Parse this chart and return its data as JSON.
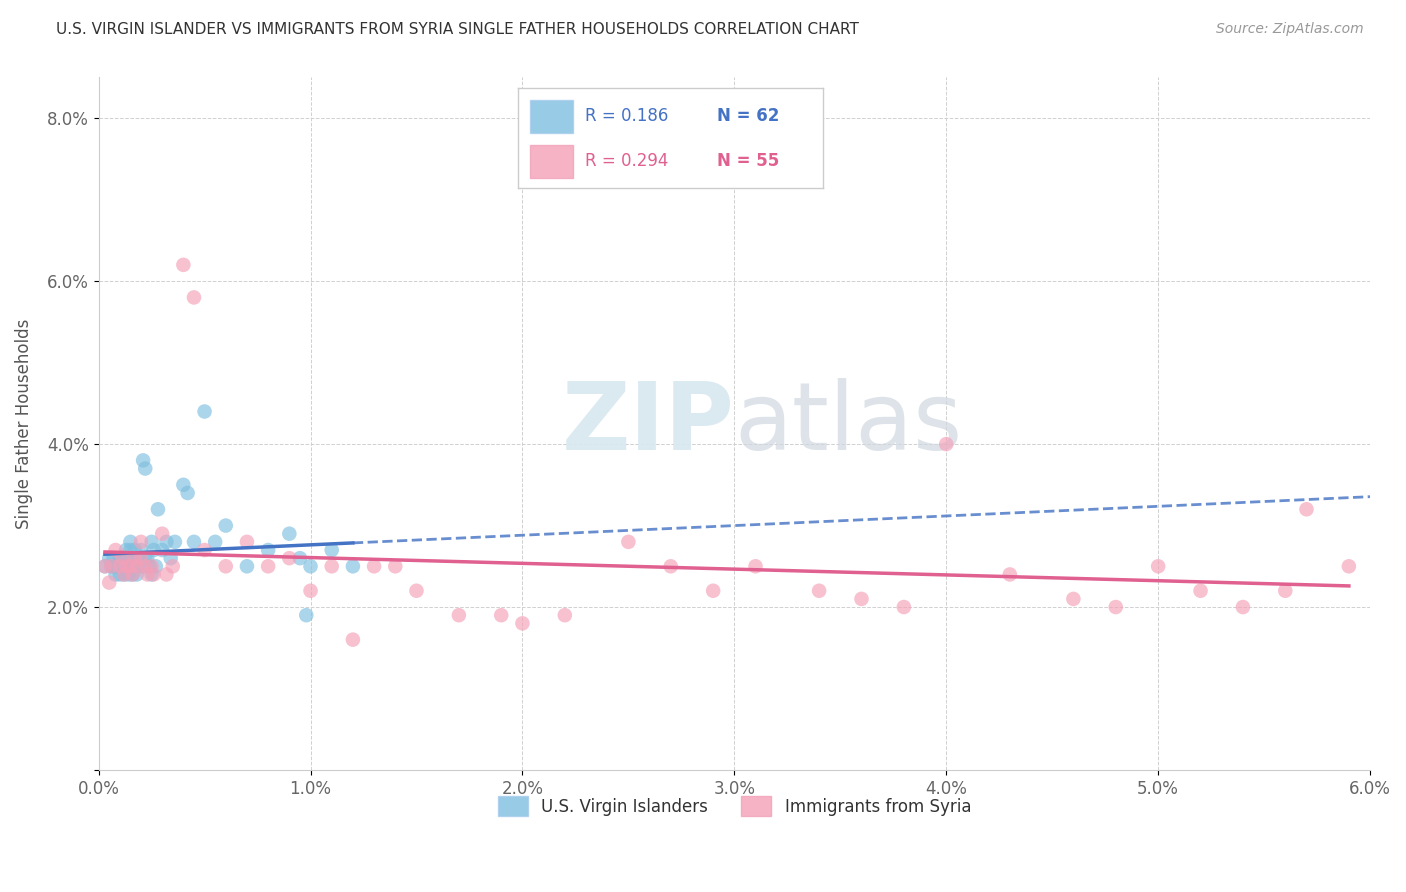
{
  "title": "U.S. VIRGIN ISLANDER VS IMMIGRANTS FROM SYRIA SINGLE FATHER HOUSEHOLDS CORRELATION CHART",
  "source": "Source: ZipAtlas.com",
  "ylabel": "Single Father Households",
  "xlabel": "",
  "xlim": [
    0.0,
    0.06
  ],
  "ylim": [
    0.0,
    0.085
  ],
  "xticks": [
    0.0,
    0.01,
    0.02,
    0.03,
    0.04,
    0.05,
    0.06
  ],
  "yticks": [
    0.0,
    0.02,
    0.04,
    0.06,
    0.08
  ],
  "xtick_labels": [
    "0.0%",
    "1.0%",
    "2.0%",
    "3.0%",
    "4.0%",
    "5.0%",
    "6.0%"
  ],
  "ytick_labels": [
    "",
    "2.0%",
    "4.0%",
    "6.0%",
    "8.0%"
  ],
  "legend_r1": "R = 0.186",
  "legend_n1": "N = 62",
  "legend_r2": "R = 0.294",
  "legend_n2": "N = 55",
  "color_blue": "#7fbfdf",
  "color_pink": "#f4a0b8",
  "color_blue_line": "#4472c4",
  "color_pink_line": "#e06090",
  "color_blue_text": "#4472c4",
  "color_pink_text": "#e06090",
  "watermark_zip": "ZIP",
  "watermark_atlas": "atlas",
  "legend_label_blue": "U.S. Virgin Islanders",
  "legend_label_pink": "Immigrants from Syria",
  "blue_x": [
    0.0003,
    0.0005,
    0.0006,
    0.0007,
    0.0007,
    0.0008,
    0.0008,
    0.0009,
    0.001,
    0.001,
    0.001,
    0.001,
    0.0011,
    0.0011,
    0.0012,
    0.0012,
    0.0013,
    0.0013,
    0.0013,
    0.0014,
    0.0014,
    0.0015,
    0.0015,
    0.0015,
    0.0016,
    0.0016,
    0.0017,
    0.0017,
    0.0018,
    0.0018,
    0.0019,
    0.002,
    0.002,
    0.0021,
    0.0021,
    0.0022,
    0.0022,
    0.0023,
    0.0024,
    0.0025,
    0.0025,
    0.0026,
    0.0027,
    0.0028,
    0.003,
    0.0032,
    0.0034,
    0.0036,
    0.004,
    0.0042,
    0.0045,
    0.005,
    0.0055,
    0.006,
    0.007,
    0.008,
    0.009,
    0.0095,
    0.0098,
    0.01,
    0.011,
    0.012
  ],
  "blue_y": [
    0.025,
    0.026,
    0.025,
    0.025,
    0.026,
    0.024,
    0.025,
    0.025,
    0.025,
    0.024,
    0.025,
    0.026,
    0.025,
    0.026,
    0.024,
    0.025,
    0.025,
    0.026,
    0.027,
    0.024,
    0.025,
    0.025,
    0.027,
    0.028,
    0.025,
    0.024,
    0.026,
    0.027,
    0.025,
    0.024,
    0.026,
    0.026,
    0.027,
    0.025,
    0.038,
    0.037,
    0.026,
    0.026,
    0.025,
    0.028,
    0.024,
    0.027,
    0.025,
    0.032,
    0.027,
    0.028,
    0.026,
    0.028,
    0.035,
    0.034,
    0.028,
    0.044,
    0.028,
    0.03,
    0.025,
    0.027,
    0.029,
    0.026,
    0.019,
    0.025,
    0.027,
    0.025
  ],
  "pink_x": [
    0.0003,
    0.0005,
    0.0006,
    0.0008,
    0.001,
    0.0011,
    0.0012,
    0.0013,
    0.0015,
    0.0016,
    0.0017,
    0.0018,
    0.002,
    0.002,
    0.0022,
    0.0023,
    0.0025,
    0.0026,
    0.003,
    0.0032,
    0.0035,
    0.004,
    0.0045,
    0.005,
    0.006,
    0.007,
    0.008,
    0.009,
    0.01,
    0.011,
    0.012,
    0.013,
    0.014,
    0.015,
    0.017,
    0.019,
    0.02,
    0.022,
    0.025,
    0.027,
    0.029,
    0.031,
    0.034,
    0.036,
    0.038,
    0.04,
    0.043,
    0.046,
    0.048,
    0.05,
    0.052,
    0.054,
    0.056,
    0.057,
    0.059
  ],
  "pink_y": [
    0.025,
    0.023,
    0.025,
    0.027,
    0.025,
    0.026,
    0.024,
    0.025,
    0.025,
    0.024,
    0.026,
    0.025,
    0.026,
    0.028,
    0.025,
    0.024,
    0.025,
    0.024,
    0.029,
    0.024,
    0.025,
    0.062,
    0.058,
    0.027,
    0.025,
    0.028,
    0.025,
    0.026,
    0.022,
    0.025,
    0.016,
    0.025,
    0.025,
    0.022,
    0.019,
    0.019,
    0.018,
    0.019,
    0.028,
    0.025,
    0.022,
    0.025,
    0.022,
    0.021,
    0.02,
    0.04,
    0.024,
    0.021,
    0.02,
    0.025,
    0.022,
    0.02,
    0.022,
    0.032,
    0.025
  ]
}
